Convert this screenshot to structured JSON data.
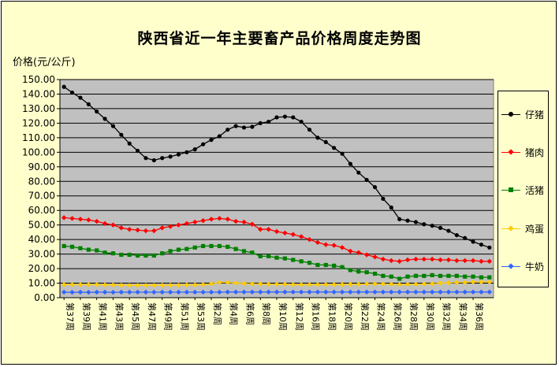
{
  "chart_data": {
    "type": "line",
    "title": "陕西省近一年主要畜产品价格周度走势图",
    "ylabel": "价格(元/公斤)",
    "xlabel": "",
    "ylim": [
      0,
      150
    ],
    "ytick_step": 10,
    "grid": true,
    "legend_position": "right",
    "plot_background": "#c0c0c0",
    "chart_background": "#ffffcc",
    "tick_labels": [
      "第37周",
      "第39周",
      "第41周",
      "第43周",
      "第45周",
      "第47周",
      "第49周",
      "第51周",
      "第53周",
      "第2周",
      "第4周",
      "第6周",
      "第8周",
      "第10周",
      "第12周",
      "第16周",
      "第18周",
      "第20周",
      "第22周",
      "第24周",
      "第26周",
      "第28周",
      "第30周",
      "第32周",
      "第34周",
      "第36周"
    ],
    "series": [
      {
        "name": "仔猪",
        "color": "#000000",
        "marker": "circle",
        "values": [
          145,
          141,
          137.5,
          133,
          128,
          123,
          118,
          112,
          106,
          101,
          96,
          94.5,
          96,
          97,
          98.5,
          100,
          102,
          105.5,
          108.5,
          111,
          115.5,
          118,
          117,
          117.5,
          120,
          121,
          124,
          124.5,
          124,
          121,
          115.5,
          110,
          107,
          103,
          99,
          92,
          86,
          81,
          76,
          68,
          62,
          54,
          53,
          52,
          50.5,
          49.5,
          48,
          46,
          43,
          41,
          38.5,
          36.5,
          34.5
        ]
      },
      {
        "name": "猪肉",
        "color": "#ff0000",
        "marker": "diamond",
        "values": [
          55,
          54.5,
          54,
          53.5,
          52.5,
          51,
          50,
          48,
          47,
          46.5,
          46,
          46,
          48,
          49,
          50,
          51,
          52,
          53,
          54,
          54.5,
          54,
          52.5,
          52,
          50.5,
          47,
          47,
          45.5,
          44.5,
          43.5,
          42,
          40,
          38,
          36.5,
          36,
          34.5,
          32,
          31,
          29.5,
          28,
          26.5,
          25.5,
          25,
          26,
          26.5,
          26.5,
          26.5,
          26,
          26,
          25.5,
          25.5,
          25.5,
          25,
          25
        ]
      },
      {
        "name": "活猪",
        "color": "#008000",
        "marker": "square",
        "values": [
          35.5,
          35,
          34,
          33,
          32.5,
          31,
          30.5,
          29.5,
          29.5,
          29,
          29,
          29,
          30.5,
          32,
          33,
          33.5,
          34.5,
          35.5,
          35.5,
          35.5,
          35,
          33.5,
          32,
          31,
          28.5,
          28.5,
          27.5,
          27,
          26,
          25,
          24,
          22.5,
          22.5,
          22,
          21,
          19,
          18,
          17.5,
          16.5,
          15,
          14.5,
          13,
          14.5,
          15,
          15,
          15.5,
          15,
          15,
          15,
          14.5,
          14.5,
          14,
          14
        ]
      },
      {
        "name": "鸡蛋",
        "color": "#ffcc00",
        "marker": "diamond",
        "values": [
          9,
          9,
          9,
          9,
          9,
          8.8,
          8.8,
          8.6,
          8.5,
          8.5,
          8.5,
          8.5,
          8.6,
          8.6,
          8.6,
          8.8,
          8.8,
          9,
          9.5,
          10.5,
          10.5,
          10,
          9.8,
          9.5,
          9.5,
          9.3,
          9.2,
          9.2,
          9,
          9,
          9,
          9,
          9,
          9,
          9,
          9.2,
          9.2,
          9.5,
          9.5,
          9.5,
          9.3,
          9,
          9.2,
          9.2,
          9.5,
          9.5,
          10,
          10.2,
          10.5,
          10.5,
          10.8,
          10.8,
          10.8
        ]
      },
      {
        "name": "牛奶",
        "color": "#3366ff",
        "marker": "diamond",
        "values": [
          3.8,
          3.7,
          3.8,
          3.7,
          3.8,
          3.8,
          3.7,
          3.8,
          3.8,
          3.8,
          3.8,
          3.8,
          3.8,
          3.8,
          3.8,
          3.8,
          3.8,
          3.8,
          3.8,
          3.8,
          3.9,
          3.9,
          3.9,
          3.9,
          3.9,
          3.9,
          3.9,
          3.9,
          3.9,
          3.9,
          3.9,
          3.9,
          3.9,
          3.9,
          3.9,
          3.9,
          3.9,
          3.9,
          3.9,
          3.9,
          3.9,
          3.9,
          3.9,
          3.9,
          3.9,
          3.9,
          3.9,
          3.9,
          3.9,
          3.9,
          3.9,
          3.9,
          3.9
        ]
      }
    ]
  }
}
